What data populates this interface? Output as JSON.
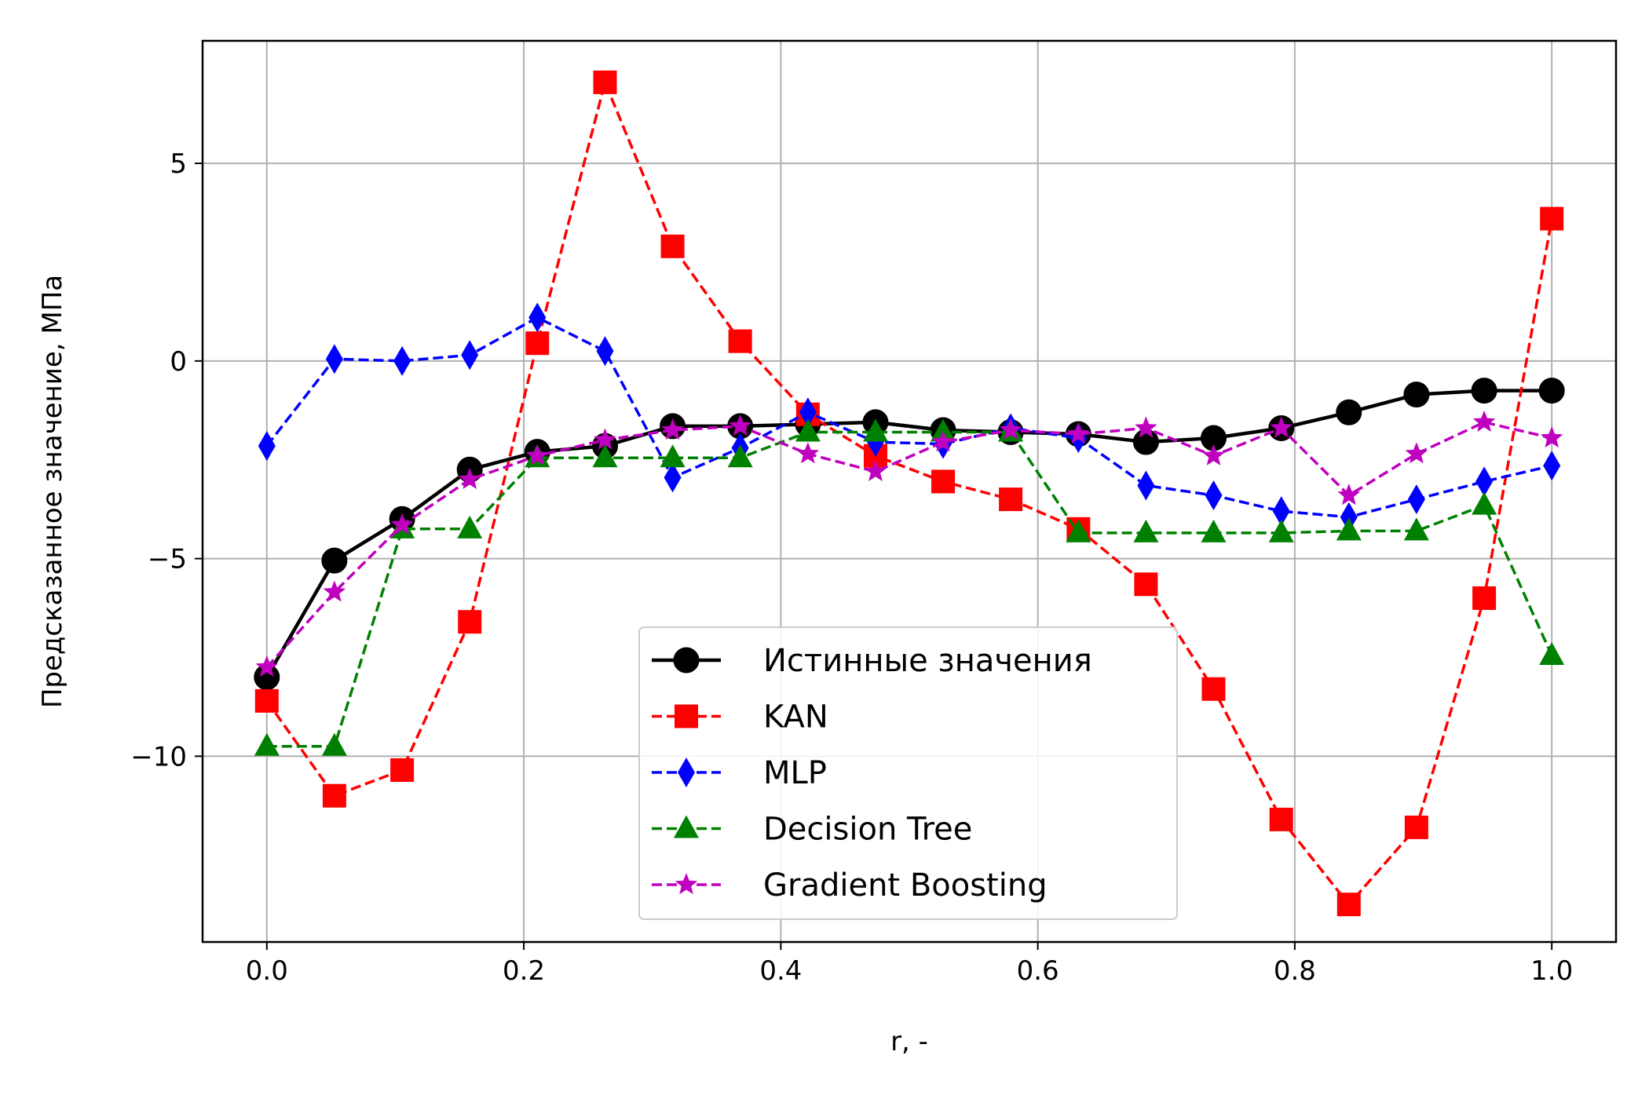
{
  "chart_data": {
    "type": "line",
    "xlabel": "r, -",
    "ylabel": "Предсказанное значение, МПа",
    "xlim": [
      -0.05,
      1.05
    ],
    "ylim": [
      -14.7,
      8.1
    ],
    "xticks": [
      0.0,
      0.2,
      0.4,
      0.6,
      0.8,
      1.0
    ],
    "xtick_labels": [
      "0.0",
      "0.2",
      "0.4",
      "0.6",
      "0.8",
      "1.0"
    ],
    "yticks": [
      -10,
      -5,
      0,
      5
    ],
    "ytick_labels": [
      "−10",
      "−5",
      "0",
      "5"
    ],
    "grid": true,
    "legend_position": "lower-center",
    "x": [
      0.0,
      0.0526,
      0.1053,
      0.1579,
      0.2105,
      0.2632,
      0.3158,
      0.3684,
      0.4211,
      0.4737,
      0.5263,
      0.5789,
      0.6316,
      0.6842,
      0.7368,
      0.7895,
      0.8421,
      0.8947,
      0.9474,
      1.0
    ],
    "series": [
      {
        "name": "Истинные значения",
        "color": "#000000",
        "linestyle": "solid",
        "marker": "circle",
        "values": [
          -8.0,
          -5.05,
          -4.0,
          -2.75,
          -2.3,
          -2.15,
          -1.65,
          -1.65,
          -1.6,
          -1.55,
          -1.75,
          -1.8,
          -1.85,
          -2.05,
          -1.95,
          -1.7,
          -1.3,
          -0.85,
          -0.75,
          -0.75
        ]
      },
      {
        "name": "KAN",
        "color": "#ff0000",
        "linestyle": "dashed",
        "marker": "square",
        "values": [
          -8.6,
          -11.0,
          -10.35,
          -6.6,
          0.45,
          7.05,
          2.9,
          0.5,
          -1.35,
          -2.4,
          -3.05,
          -3.5,
          -4.25,
          -5.65,
          -8.3,
          -11.6,
          -13.75,
          -11.8,
          -6.0,
          3.6
        ]
      },
      {
        "name": "MLP",
        "color": "#0000ff",
        "linestyle": "dashed",
        "marker": "thin_diamond",
        "values": [
          -2.15,
          0.05,
          0.0,
          0.15,
          1.1,
          0.25,
          -2.95,
          -2.2,
          -1.3,
          -2.05,
          -2.1,
          -1.7,
          -1.95,
          -3.15,
          -3.4,
          -3.8,
          -3.95,
          -3.5,
          -3.05,
          -2.65
        ]
      },
      {
        "name": "Decision Tree",
        "color": "#008000",
        "linestyle": "dashed",
        "marker": "triangle",
        "values": [
          -9.75,
          -9.75,
          -4.25,
          -4.25,
          -2.45,
          -2.45,
          -2.45,
          -2.45,
          -1.8,
          -1.8,
          -1.8,
          -1.8,
          -4.35,
          -4.35,
          -4.35,
          -4.35,
          -4.3,
          -4.3,
          -3.65,
          -7.45
        ]
      },
      {
        "name": "Gradient Boosting",
        "color": "#bf00bf",
        "linestyle": "dashed",
        "marker": "star",
        "values": [
          -7.75,
          -5.85,
          -4.15,
          -3.0,
          -2.4,
          -2.0,
          -1.75,
          -1.65,
          -2.35,
          -2.8,
          -2.05,
          -1.75,
          -1.85,
          -1.7,
          -2.4,
          -1.7,
          -3.4,
          -2.35,
          -1.55,
          -1.95
        ]
      }
    ]
  }
}
